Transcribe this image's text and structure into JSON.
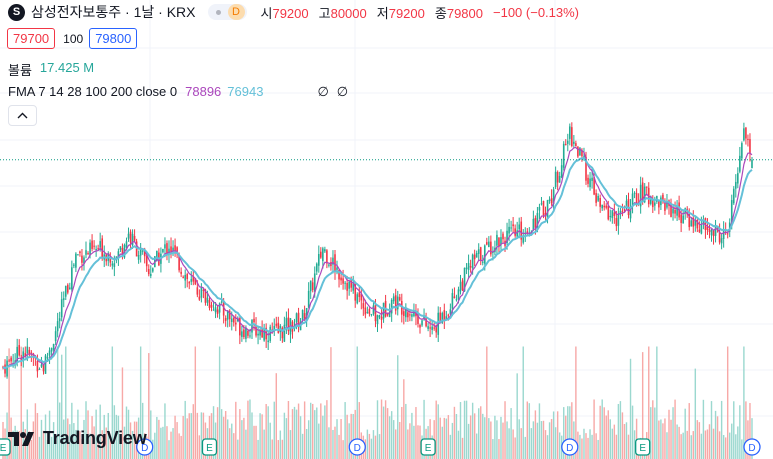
{
  "header": {
    "symbol_icon": "S",
    "title": "삼성전자보통주 · 1날 · KRX",
    "delay_badge": "D",
    "open_label": "시",
    "open": "79200",
    "high_label": "고",
    "high": "80000",
    "low_label": "저",
    "low": "79200",
    "close_label": "종",
    "close": "79800",
    "change": "−100 (−0.13%)"
  },
  "quote": {
    "bid": "79700",
    "spread": "100",
    "ask": "79800"
  },
  "volume": {
    "label": "볼륨",
    "value": "17.425 M"
  },
  "fma": {
    "label": "FMA 7 14 28 100 200 close 0",
    "value_a": "78896",
    "value_b": "76943",
    "na_1": "∅",
    "na_2": "∅"
  },
  "logo": {
    "text": "TradingView"
  },
  "colors": {
    "up": "#22ab94",
    "down": "#f23645",
    "vol_up": "#9bd8cf",
    "vol_down": "#f7a9a7",
    "ma_fast": "#ab47bc",
    "ma_slow": "#64c0d8",
    "event_e": "#089981",
    "event_d": "#2962ff"
  },
  "chart_data": {
    "type": "candlestick",
    "title": "삼성전자보통주 · 1날 · KRX",
    "x_span_description_note": "daily candles, left to right",
    "ylim": [
      63000,
      88000
    ],
    "last_price": 79800,
    "anchors": [
      [
        0,
        65000
      ],
      [
        10,
        66200
      ],
      [
        20,
        65000
      ],
      [
        26,
        67500
      ],
      [
        36,
        73000
      ],
      [
        48,
        73400
      ],
      [
        56,
        72800
      ],
      [
        62,
        74500
      ],
      [
        68,
        73000
      ],
      [
        72,
        71800
      ],
      [
        82,
        73800
      ],
      [
        92,
        71000
      ],
      [
        104,
        69500
      ],
      [
        118,
        67800
      ],
      [
        135,
        67400
      ],
      [
        148,
        68500
      ],
      [
        158,
        73500
      ],
      [
        166,
        71800
      ],
      [
        175,
        70000
      ],
      [
        185,
        68400
      ],
      [
        192,
        69800
      ],
      [
        202,
        69000
      ],
      [
        212,
        67500
      ],
      [
        222,
        69800
      ],
      [
        232,
        72500
      ],
      [
        245,
        74200
      ],
      [
        258,
        74700
      ],
      [
        270,
        76800
      ],
      [
        280,
        81800
      ],
      [
        288,
        79000
      ],
      [
        295,
        76300
      ],
      [
        304,
        75600
      ],
      [
        315,
        77400
      ],
      [
        328,
        76600
      ],
      [
        340,
        75400
      ],
      [
        350,
        74600
      ],
      [
        358,
        74400
      ],
      [
        366,
        82200
      ],
      [
        370,
        79800
      ]
    ],
    "ma_fast_last": 78896,
    "ma_slow_last": 76943,
    "events": [
      {
        "type": "E",
        "x": 0
      },
      {
        "type": "D",
        "x": 70
      },
      {
        "type": "E",
        "x": 102
      },
      {
        "type": "E",
        "x": 210
      },
      {
        "type": "D",
        "x": 280
      },
      {
        "type": "E",
        "x": 316
      },
      {
        "type": "D",
        "x": 372
      },
      {
        "type": "D",
        "x": 175
      }
    ]
  }
}
